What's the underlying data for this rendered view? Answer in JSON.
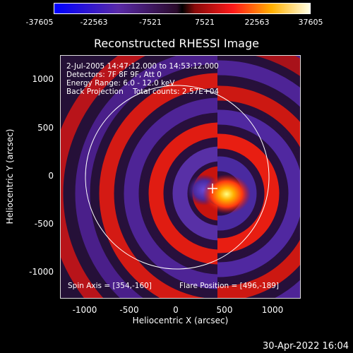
{
  "colorbar": {
    "ticks": [
      "-37605",
      "-22563",
      "-7521",
      "7521",
      "22563",
      "37605"
    ]
  },
  "title": "Reconstructed RHESSI Image",
  "info": {
    "line1": "2-Jul-2005 14:47:12.000 to 14:53:12.000",
    "line2": "Detectors: 7F 8F 9F, Att 0",
    "line3": "Energy Range: 6.0 - 12.0 keV",
    "line4": "Back Projection    Total counts: 2.57E+04"
  },
  "footer": {
    "spin_axis": "Spin Axis = [354,-160]",
    "flare_position": "Flare Position = [496,-189]"
  },
  "axes": {
    "xlabel": "Heliocentric X (arcsec)",
    "ylabel": "Heliocentric Y (arcsec)",
    "xticks": [
      "-1000",
      "-500",
      "0",
      "500",
      "1000"
    ],
    "yticks": [
      "1000",
      "500",
      "0",
      "-500",
      "-1000"
    ]
  },
  "timestamp": "30-Apr-2022 16:04"
}
